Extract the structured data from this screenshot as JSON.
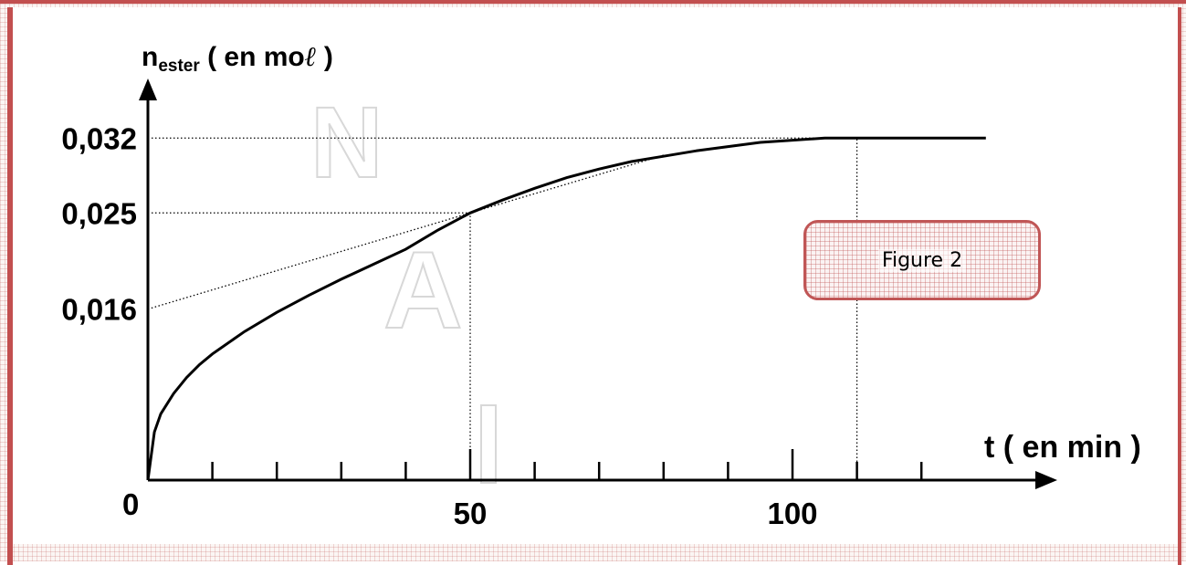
{
  "figure_label": "Figure 2",
  "watermark": [
    "N",
    "A"
  ],
  "colors": {
    "frame": "#c24f4f",
    "curve": "#000000",
    "guides": "#000000"
  },
  "chart_data": {
    "type": "line",
    "title": "",
    "ylabel_main": "n",
    "ylabel_sub": "ester",
    "ylabel_rest": " ( en mo",
    "ylabel_unit_l": "ℓ",
    "ylabel_close": " )",
    "xlabel": "t ( en min )",
    "xlim": [
      0,
      140
    ],
    "ylim": [
      0,
      0.04
    ],
    "x_tick_labels": [
      {
        "value": 0,
        "label": "0"
      },
      {
        "value": 50,
        "label": "50"
      },
      {
        "value": 100,
        "label": "100"
      }
    ],
    "x_minor_ticks": [
      10,
      20,
      30,
      40,
      50,
      60,
      70,
      80,
      90,
      100,
      110,
      120
    ],
    "y_tick_labels": [
      {
        "value": 0.032,
        "label": "0,032"
      },
      {
        "value": 0.025,
        "label": "0,025"
      },
      {
        "value": 0.016,
        "label": "0,016"
      }
    ],
    "series": [
      {
        "x": [
          0,
          1,
          2,
          4,
          6,
          8,
          10,
          15,
          20,
          25,
          30,
          35,
          40,
          45,
          50,
          55,
          60,
          65,
          70,
          75,
          80,
          85,
          90,
          95,
          100,
          105,
          110,
          120,
          130
        ],
        "y": [
          0,
          0.0045,
          0.0062,
          0.0081,
          0.0096,
          0.0108,
          0.0118,
          0.0139,
          0.0157,
          0.0173,
          0.0188,
          0.0202,
          0.0216,
          0.0234,
          0.025,
          0.0262,
          0.0273,
          0.0283,
          0.0291,
          0.0298,
          0.0303,
          0.0308,
          0.0312,
          0.0316,
          0.0318,
          0.032,
          0.032,
          0.032,
          0.032
        ]
      }
    ],
    "tangent": {
      "x": [
        0,
        80
      ],
      "y": [
        0.016,
        0.0304
      ]
    },
    "guides": [
      {
        "type": "h",
        "y": 0.032,
        "x_to": 105
      },
      {
        "type": "h",
        "y": 0.025,
        "x_to": 50
      },
      {
        "type": "v",
        "x": 50,
        "y_to": 0.025
      },
      {
        "type": "v",
        "x": 110,
        "y_to": 0.032
      }
    ]
  }
}
